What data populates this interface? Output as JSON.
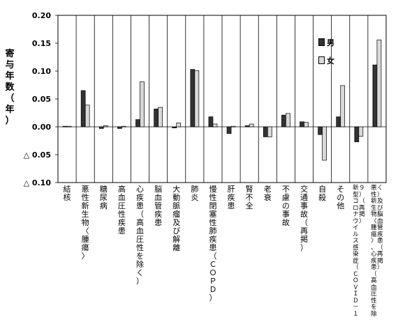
{
  "chart_data": {
    "type": "bar",
    "ylabel": "寄与年数（年）",
    "ylim": [
      -0.1,
      0.2
    ],
    "yticks": [
      {
        "value": 0.2,
        "label": "0.20"
      },
      {
        "value": 0.15,
        "label": "0.15"
      },
      {
        "value": 0.1,
        "label": "0.10"
      },
      {
        "value": 0.05,
        "label": "0.05"
      },
      {
        "value": 0.0,
        "label": "0.00"
      },
      {
        "value": -0.05,
        "label": "△ 0.05"
      },
      {
        "value": -0.1,
        "label": "△ 0.10"
      }
    ],
    "grid": "vertical-category-separators",
    "legend_position": "top-right",
    "categories": [
      "結核",
      "悪性新生物〈腫瘍〉",
      "糖尿病",
      "高血圧性疾患",
      "心疾患（高血圧性を除く）",
      "脳血管疾患",
      "大動脈瘤及び解離",
      "肺炎",
      "慢性閉塞性肺疾患（ＣＯＰＤ）",
      "肝疾患",
      "腎不全",
      "老衰",
      "不慮の事故",
      "交通事故（再掲）",
      "自殺",
      "その他",
      "新型コロナウイルス感染症（ＣＯＶＩＤ－１９）（再掲）",
      "悪性新生物〈腫瘍〉、心疾患（高血圧性を除く）及び脳血管疾患（再掲）"
    ],
    "series": [
      {
        "name": "男",
        "color": "#333333",
        "values": [
          0.001,
          0.065,
          -0.003,
          -0.003,
          0.013,
          0.032,
          -0.002,
          0.103,
          0.018,
          -0.012,
          0.002,
          -0.018,
          0.021,
          0.009,
          -0.014,
          0.018,
          -0.027,
          0.111
        ]
      },
      {
        "name": "女",
        "color": "#d9d9d9",
        "values": [
          0.001,
          0.039,
          0.002,
          0.001,
          0.081,
          0.035,
          0.007,
          0.101,
          0.005,
          0.001,
          0.005,
          -0.018,
          0.024,
          0.008,
          -0.06,
          0.074,
          -0.017,
          0.156
        ]
      }
    ]
  }
}
